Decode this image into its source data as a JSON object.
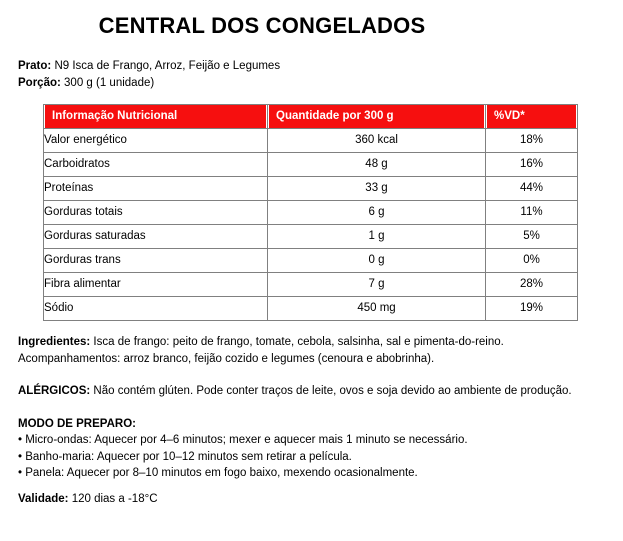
{
  "header": {
    "title": "CENTRAL DOS CONGELADOS"
  },
  "meta": {
    "prato_label": "Prato:",
    "prato_value": "N9 Isca de Frango, Arroz, Feijão e Legumes",
    "porcao_label": "Porção:",
    "porcao_value": "300 g (1 unidade)"
  },
  "table": {
    "headers": [
      "Informação Nutricional",
      "Quantidade por 300 g",
      "%VD*"
    ],
    "rows": [
      {
        "name": "Valor energético",
        "qty": "360 kcal",
        "vd": "18%"
      },
      {
        "name": "Carboidratos",
        "qty": "48 g",
        "vd": "16%"
      },
      {
        "name": "Proteínas",
        "qty": "33 g",
        "vd": "44%"
      },
      {
        "name": "Gorduras totais",
        "qty": "6 g",
        "vd": "11%"
      },
      {
        "name": "Gorduras saturadas",
        "qty": "1 g",
        "vd": "5%"
      },
      {
        "name": "Gorduras trans",
        "qty": "0 g",
        "vd": "0%"
      },
      {
        "name": "Fibra alimentar",
        "qty": "7 g",
        "vd": "28%"
      },
      {
        "name": "Sódio",
        "qty": "450 mg",
        "vd": "19%"
      }
    ],
    "colors": {
      "header_bg": "#F60F0F",
      "header_text": "#FFFFFF",
      "grid_border": "#808080"
    }
  },
  "sections": {
    "ingredientes_label": "Ingredientes:",
    "ingredientes_text": "Isca de frango: peito de frango, tomate, cebola, salsinha, sal e pimenta-do-reino. Acompanhamentos: arroz branco, feijão cozido e legumes (cenoura e abobrinha).",
    "alergicos_label": "ALÉRGICOS:",
    "alergicos_text": "Não contém glúten. Pode conter traços de leite, ovos e soja devido ao ambiente de produção.",
    "modo_label": "MODO DE PREPARO:",
    "modo_items": [
      "• Micro-ondas: Aquecer por 4–6 minutos; mexer e aquecer mais 1 minuto se necessário.",
      "• Banho-maria: Aquecer por 10–12 minutos sem retirar a película.",
      "• Panela: Aquecer por 8–10 minutos em fogo baixo, mexendo ocasionalmente."
    ],
    "validade_label": "Validade:",
    "validade_value": "120 dias a -18°C"
  }
}
